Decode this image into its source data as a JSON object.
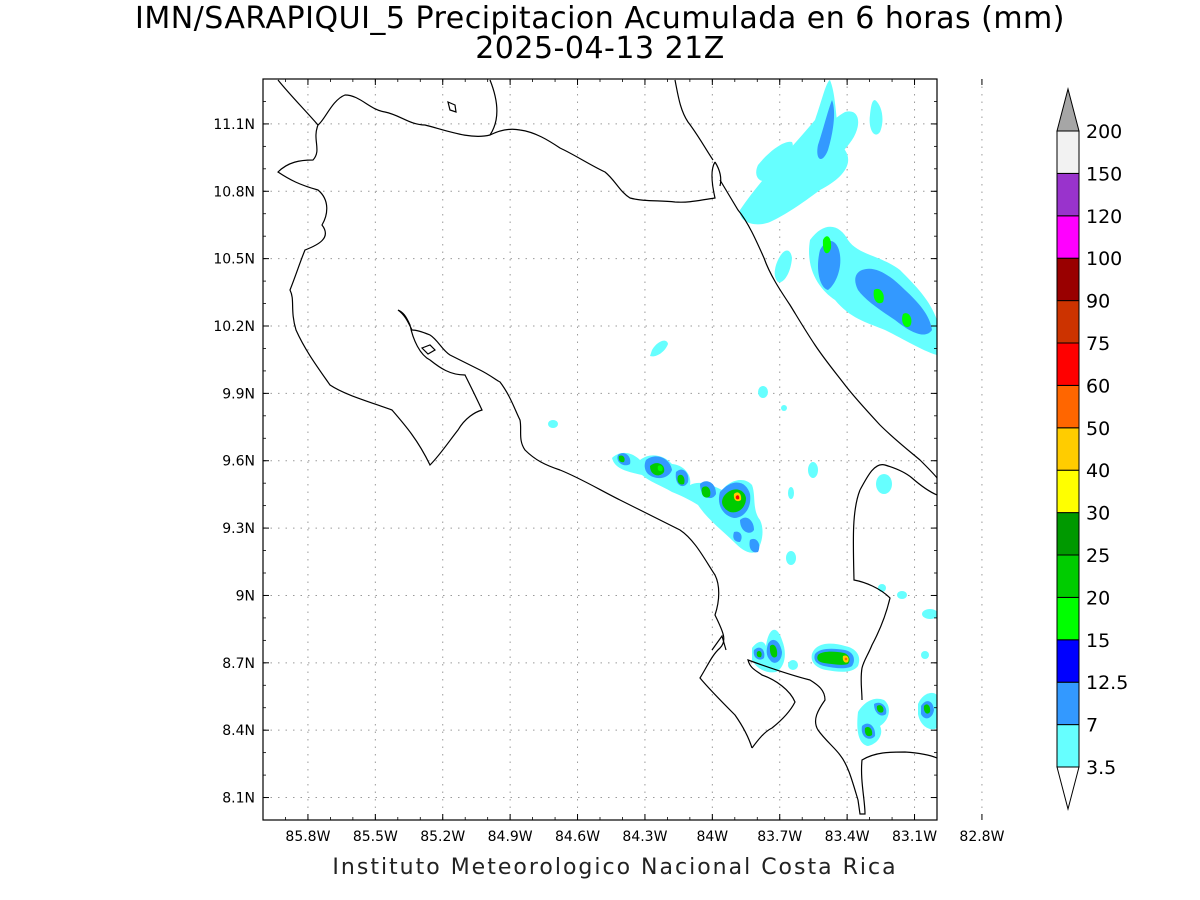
{
  "header": {
    "title": "IMN/SARAPIQUI_5 Precipitacion Acumulada en 6 horas (mm)",
    "subtitle": "2025-04-13 21Z"
  },
  "footer": {
    "credit": "Instituto Meteorologico Nacional Costa Rica"
  },
  "map": {
    "lon_range": [
      -86.0,
      -83.0
    ],
    "lat_range": [
      8.0,
      11.3
    ],
    "grid": true,
    "lon_ticks": [
      {
        "value": -85.8,
        "label": "85.8W"
      },
      {
        "value": -85.5,
        "label": "85.5W"
      },
      {
        "value": -85.2,
        "label": "85.2W"
      },
      {
        "value": -84.9,
        "label": "84.9W"
      },
      {
        "value": -84.6,
        "label": "84.6W"
      },
      {
        "value": -84.3,
        "label": "84.3W"
      },
      {
        "value": -84.0,
        "label": "84W"
      },
      {
        "value": -83.7,
        "label": "83.7W"
      },
      {
        "value": -83.4,
        "label": "83.4W"
      },
      {
        "value": -83.1,
        "label": "83.1W"
      },
      {
        "value": -82.8,
        "label": "82.8W"
      }
    ],
    "lat_ticks": [
      {
        "value": 11.1,
        "label": "11.1N"
      },
      {
        "value": 10.8,
        "label": "10.8N"
      },
      {
        "value": 10.5,
        "label": "10.5N"
      },
      {
        "value": 10.2,
        "label": "10.2N"
      },
      {
        "value": 9.9,
        "label": "9.9N"
      },
      {
        "value": 9.6,
        "label": "9.6N"
      },
      {
        "value": 9.3,
        "label": "9.3N"
      },
      {
        "value": 9.0,
        "label": "9N"
      },
      {
        "value": 8.7,
        "label": "8.7N"
      },
      {
        "value": 8.4,
        "label": "8.4N"
      },
      {
        "value": 8.1,
        "label": "8.1N"
      }
    ]
  },
  "legend": {
    "levels": [
      "3.5",
      "7",
      "12.5",
      "15",
      "20",
      "25",
      "30",
      "40",
      "50",
      "60",
      "75",
      "90",
      "100",
      "120",
      "150",
      "200"
    ],
    "colors": [
      "#66ffff",
      "#3399ff",
      "#0000ff",
      "#00ff00",
      "#00cc00",
      "#009900",
      "#ffff00",
      "#ffcc00",
      "#ff6600",
      "#ff0000",
      "#cc3300",
      "#990000",
      "#ff00ff",
      "#9933cc",
      "#f2f2f2",
      "#a6a6a6"
    ]
  }
}
